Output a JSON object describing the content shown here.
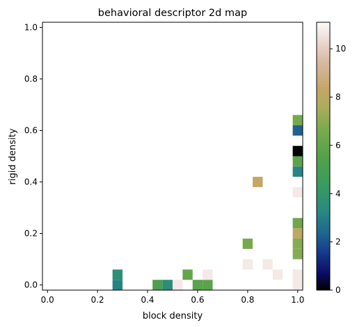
{
  "chart_data": {
    "type": "heatmap",
    "title": "behavioral descriptor 2d map",
    "xlabel": "block density",
    "ylabel": "rigid density",
    "xlim": [
      -0.02,
      1.02
    ],
    "ylim": [
      -0.02,
      1.02
    ],
    "x_ticks": [
      "0.0",
      "0.2",
      "0.4",
      "0.6",
      "0.8",
      "1.0"
    ],
    "y_ticks": [
      "0.0",
      "0.2",
      "0.4",
      "0.6",
      "0.8",
      "1.0"
    ],
    "bin_size": 0.04,
    "colormap": "gist_earth",
    "colorbar": {
      "range": [
        0,
        11.1
      ],
      "ticks": [
        "0",
        "2",
        "4",
        "6",
        "8",
        "10"
      ]
    },
    "grid": false,
    "cells": [
      {
        "x": 1.0,
        "y": 0.64,
        "value": 6.5
      },
      {
        "x": 1.0,
        "y": 0.6,
        "value": 2.3
      },
      {
        "x": 1.0,
        "y": 0.52,
        "value": 0
      },
      {
        "x": 1.0,
        "y": 0.48,
        "value": 5.8
      },
      {
        "x": 1.0,
        "y": 0.44,
        "value": 3.2
      },
      {
        "x": 1.0,
        "y": 0.36,
        "value": 10.7
      },
      {
        "x": 0.84,
        "y": 0.4,
        "value": 8.3
      },
      {
        "x": 1.0,
        "y": 0.24,
        "value": 6.3
      },
      {
        "x": 1.0,
        "y": 0.2,
        "value": 8.1
      },
      {
        "x": 1.0,
        "y": 0.16,
        "value": 6.9
      },
      {
        "x": 1.0,
        "y": 0.12,
        "value": 6.9
      },
      {
        "x": 0.8,
        "y": 0.16,
        "value": 6.5
      },
      {
        "x": 0.8,
        "y": 0.08,
        "value": 10.7
      },
      {
        "x": 0.88,
        "y": 0.08,
        "value": 10.7
      },
      {
        "x": 0.92,
        "y": 0.04,
        "value": 10.7
      },
      {
        "x": 1.0,
        "y": 0.04,
        "value": 10.7
      },
      {
        "x": 1.0,
        "y": 0.0,
        "value": 10.7
      },
      {
        "x": 0.28,
        "y": 0.04,
        "value": 3.6
      },
      {
        "x": 0.28,
        "y": 0.0,
        "value": 3.1
      },
      {
        "x": 0.44,
        "y": 0.0,
        "value": 5.2
      },
      {
        "x": 0.48,
        "y": 0.0,
        "value": 3.5
      },
      {
        "x": 0.52,
        "y": 0.0,
        "value": 10.7
      },
      {
        "x": 0.56,
        "y": 0.04,
        "value": 6.0
      },
      {
        "x": 0.6,
        "y": 0.0,
        "value": 5.7
      },
      {
        "x": 0.64,
        "y": 0.0,
        "value": 5.7
      },
      {
        "x": 0.64,
        "y": 0.04,
        "value": 10.7
      }
    ]
  }
}
